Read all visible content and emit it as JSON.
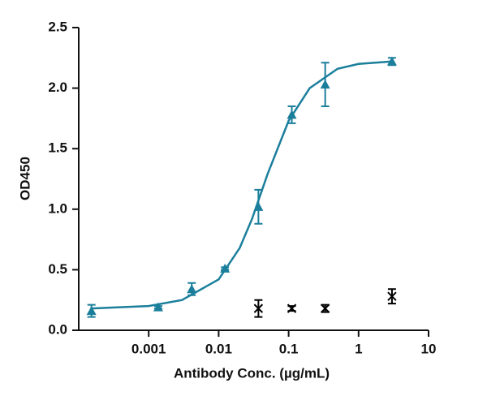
{
  "chart_data": {
    "type": "scatter",
    "x_scale": "log",
    "x_label": "Antibody Conc. (µg/mL)",
    "y_label": "OD450",
    "xlim": [
      0.0001,
      10
    ],
    "xticks": [
      0.001,
      0.01,
      0.1,
      1,
      10
    ],
    "ylim": [
      0,
      2.5
    ],
    "yticks": [
      {
        "value": 0,
        "label": "0.0"
      },
      0.5,
      {
        "value": 1,
        "label": "1.0"
      },
      1.5,
      {
        "value": 2,
        "label": "2.0"
      },
      2.5
    ],
    "series": [
      {
        "mode": "line",
        "color": "#1b7f9c",
        "x": [
          0.00015,
          0.001,
          0.003,
          0.01,
          0.02,
          0.03,
          0.05,
          0.1,
          0.2,
          0.5,
          1,
          3
        ],
        "values": [
          0.18,
          0.2,
          0.25,
          0.42,
          0.68,
          0.92,
          1.29,
          1.73,
          2.0,
          2.16,
          2.2,
          2.22
        ]
      },
      {
        "mode": "markers",
        "marker": "triangle",
        "color": "#1b7f9c",
        "x": [
          0.000152,
          0.00137,
          0.00412,
          0.0123,
          0.037,
          0.111,
          0.333,
          3
        ],
        "values": [
          0.16,
          0.19,
          0.34,
          0.51,
          1.02,
          1.78,
          2.03,
          2.22
        ],
        "errors": [
          0.05,
          0.01,
          0.05,
          0.01,
          0.14,
          0.07,
          0.18,
          0.03
        ]
      },
      {
        "mode": "markers",
        "marker": "x",
        "color": "#000000",
        "x": [
          0.037,
          0.111,
          0.333,
          3
        ],
        "values": [
          0.18,
          0.18,
          0.18,
          0.28
        ],
        "errors": [
          0.07,
          0.02,
          0.03,
          0.06
        ]
      }
    ]
  }
}
